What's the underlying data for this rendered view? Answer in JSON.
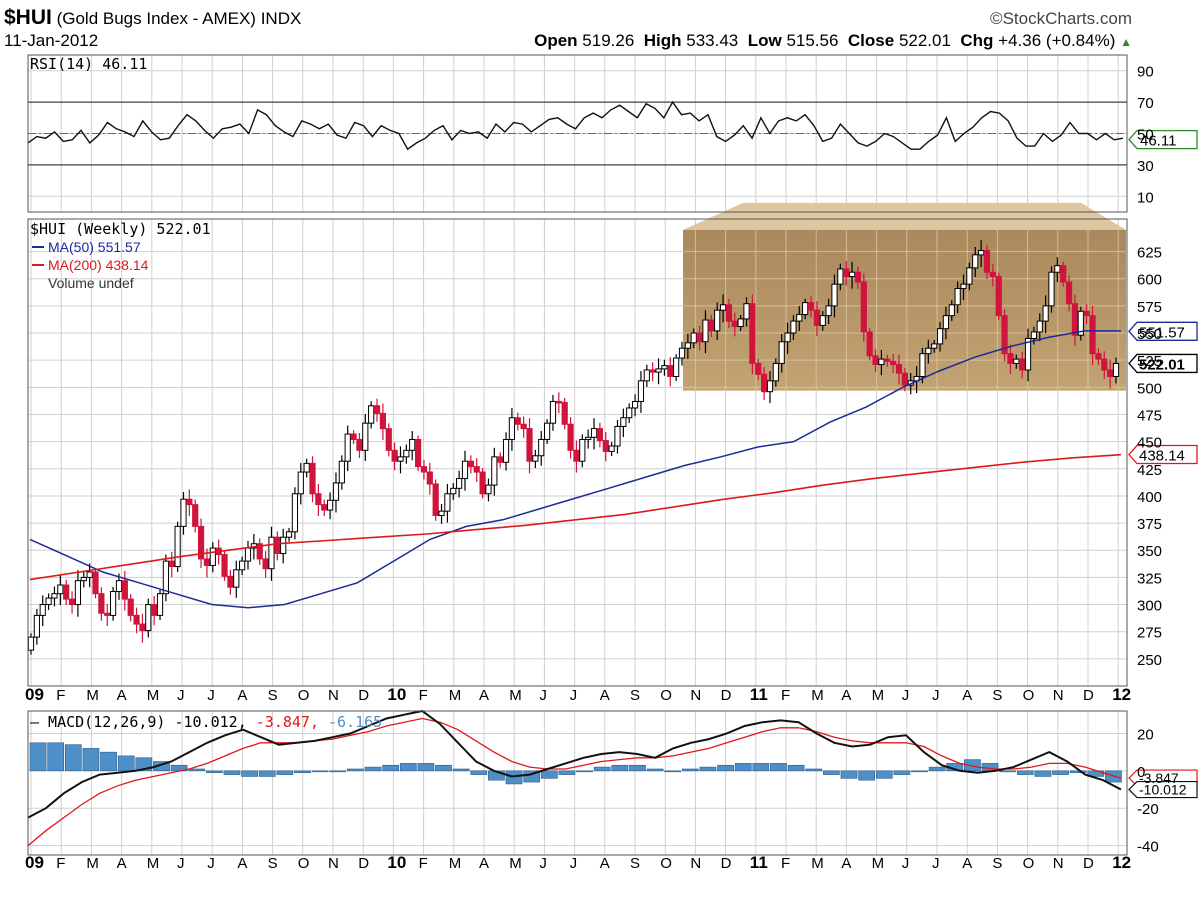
{
  "header": {
    "symbol": "$HUI",
    "name": "(Gold Bugs Index - AMEX)",
    "exchange": "INDX",
    "date": "11-Jan-2012",
    "watermark": "©StockCharts.com",
    "ohlc": {
      "open_label": "Open",
      "open": "519.26",
      "high_label": "High",
      "high": "533.43",
      "low_label": "Low",
      "low": "515.56",
      "close_label": "Close",
      "close": "522.01",
      "chg_label": "Chg",
      "chg": "+4.36 (+0.84%)"
    }
  },
  "chart_data": [
    {
      "type": "line",
      "panel": "rsi",
      "legend": "RSI(14) 46.11",
      "current_value": "46.11",
      "ylim": [
        0,
        100
      ],
      "yticks": [
        "90",
        "70",
        "50",
        "30",
        "10"
      ],
      "reference_lines": [
        70,
        30
      ],
      "series": [
        {
          "values": [
            44,
            48,
            47,
            51,
            45,
            46,
            52,
            44,
            49,
            57,
            53,
            51,
            48,
            58,
            51,
            46,
            47,
            55,
            62,
            58,
            52,
            47,
            53,
            54,
            56,
            50,
            65,
            62,
            55,
            51,
            48,
            58,
            56,
            53,
            56,
            49,
            47,
            57,
            55,
            48,
            55,
            52,
            50,
            40,
            44,
            47,
            52,
            55,
            46,
            52,
            50,
            51,
            47,
            56,
            51,
            57,
            56,
            51,
            55,
            59,
            60,
            56,
            53,
            60,
            63,
            60,
            65,
            68,
            64,
            60,
            69,
            66,
            60,
            70,
            62,
            63,
            58,
            62,
            48,
            45,
            49,
            55,
            47,
            60,
            50,
            58,
            60,
            58,
            62,
            55,
            45,
            47,
            56,
            50,
            44,
            42,
            45,
            50,
            48,
            44,
            40,
            40,
            45,
            49,
            60,
            45,
            50,
            54,
            60,
            64,
            63,
            58,
            47,
            42,
            42,
            50,
            45,
            49,
            57,
            50,
            50,
            46,
            50,
            46,
            47
          ]
        }
      ]
    },
    {
      "type": "candlestick",
      "panel": "price",
      "legend": "$HUI (Weekly) 522.01",
      "ylim": [
        225,
        655
      ],
      "yticks": [
        "625",
        "600",
        "575",
        "550",
        "525",
        "500",
        "475",
        "450",
        "425",
        "400",
        "375",
        "350",
        "325",
        "300",
        "275",
        "250"
      ],
      "x_tick_labels": [
        "09",
        "F",
        "M",
        "A",
        "M",
        "J",
        "J",
        "A",
        "S",
        "O",
        "N",
        "D",
        "10",
        "F",
        "M",
        "A",
        "M",
        "J",
        "J",
        "A",
        "S",
        "O",
        "N",
        "D",
        "11",
        "F",
        "M",
        "A",
        "M",
        "J",
        "J",
        "A",
        "S",
        "O",
        "N",
        "D",
        "12"
      ],
      "series": [
        {
          "name": "$HUI",
          "close": [
            270,
            290,
            300,
            306,
            310,
            318,
            305,
            300,
            322,
            325,
            330,
            310,
            292,
            290,
            312,
            322,
            305,
            290,
            282,
            276,
            300,
            290,
            310,
            340,
            335,
            372,
            397,
            392,
            372,
            342,
            336,
            352,
            346,
            326,
            316,
            332,
            340,
            352,
            356,
            342,
            333,
            362,
            347,
            362,
            367,
            402,
            422,
            430,
            402,
            392,
            387,
            396,
            412,
            432,
            457,
            452,
            442,
            467,
            483,
            476,
            462,
            442,
            432,
            436,
            442,
            452,
            427,
            422,
            411,
            382,
            386,
            402,
            407,
            416,
            432,
            427,
            422,
            402,
            410,
            436,
            431,
            452,
            472,
            466,
            462,
            432,
            437,
            452,
            467,
            487,
            486,
            466,
            442,
            432,
            452,
            454,
            462,
            451,
            441,
            446,
            464,
            472,
            481,
            487,
            506,
            516,
            514,
            517,
            520,
            510,
            527,
            536,
            541,
            550,
            542,
            562,
            552,
            571,
            576,
            561,
            556,
            563,
            577,
            522,
            512,
            496,
            506,
            522,
            542,
            550,
            561,
            567,
            578,
            571,
            557,
            566,
            575,
            595,
            609,
            602,
            606,
            597,
            551,
            529,
            521,
            526,
            524,
            521,
            513,
            502,
            506,
            510,
            531,
            536,
            540,
            554,
            566,
            576,
            591,
            595,
            610,
            622,
            626,
            606,
            602,
            566,
            531,
            522,
            526,
            516,
            545,
            551,
            561,
            575,
            606,
            612,
            597,
            577,
            548,
            570,
            566,
            531,
            526,
            516,
            510,
            522
          ]
        },
        {
          "name": "MA(50) 551.57",
          "current_value": "551.57",
          "values": [
            360,
            345,
            330,
            320,
            310,
            300,
            297,
            300,
            310,
            320,
            340,
            360,
            372,
            378,
            388,
            398,
            408,
            418,
            428,
            436,
            445,
            450,
            468,
            482,
            500,
            515,
            528,
            538,
            546,
            552,
            552
          ]
        },
        {
          "name": "MA(200) 438.14",
          "current_value": "438.14",
          "values": [
            323,
            330,
            337,
            344,
            350,
            356,
            359,
            362,
            365,
            369,
            373,
            378,
            383,
            390,
            397,
            403,
            410,
            416,
            421,
            426,
            431,
            435,
            438
          ]
        },
        {
          "name": "Volume undef"
        }
      ]
    },
    {
      "type": "line",
      "panel": "macd",
      "legend_label": "MACD(12,26,9)",
      "macd_value": "-10.012",
      "signal_value": "-3.847",
      "histogram_value": "-6.165",
      "ylim": [
        -45,
        32
      ],
      "yticks": [
        "20",
        "0",
        "-20",
        "-40"
      ],
      "series": [
        {
          "name": "MACD",
          "values": [
            -25,
            -20,
            -12,
            -6,
            -2,
            -1,
            0,
            2,
            5,
            10,
            15,
            19,
            22,
            18,
            14,
            15,
            16,
            18,
            20,
            24,
            28,
            30,
            32,
            25,
            15,
            5,
            0,
            -3,
            -2,
            1,
            4,
            7,
            9,
            10,
            9,
            7,
            12,
            15,
            17,
            20,
            24,
            26,
            27,
            26,
            20,
            15,
            13,
            14,
            18,
            19,
            10,
            3,
            0,
            -1,
            0,
            2,
            6,
            10,
            5,
            -2,
            -5,
            -10
          ]
        },
        {
          "name": "Signal",
          "values": [
            -40,
            -32,
            -25,
            -18,
            -12,
            -8,
            -5,
            -3,
            -1,
            1,
            4,
            8,
            12,
            15,
            15,
            15,
            16,
            17,
            19,
            21,
            24,
            26,
            28,
            26,
            22,
            16,
            10,
            5,
            2,
            1,
            1,
            3,
            5,
            6,
            7,
            7,
            8,
            10,
            12,
            15,
            18,
            21,
            23,
            23,
            21,
            18,
            16,
            15,
            15,
            15,
            13,
            8,
            4,
            2,
            1,
            1,
            2,
            4,
            4,
            2,
            -1,
            -4
          ]
        },
        {
          "name": "Histogram",
          "values": [
            15,
            15,
            14,
            12,
            10,
            8,
            7,
            5,
            3,
            1,
            -1,
            -2,
            -3,
            -3,
            -2,
            -1,
            0,
            0,
            1,
            2,
            3,
            4,
            4,
            3,
            1,
            -2,
            -5,
            -7,
            -6,
            -4,
            -2,
            0,
            2,
            3,
            3,
            1,
            0,
            1,
            2,
            3,
            4,
            4,
            4,
            3,
            1,
            -2,
            -4,
            -5,
            -4,
            -2,
            0,
            2,
            4,
            6,
            4,
            0,
            -2,
            -3,
            -2,
            -1,
            -3,
            -6
          ]
        }
      ]
    }
  ]
}
